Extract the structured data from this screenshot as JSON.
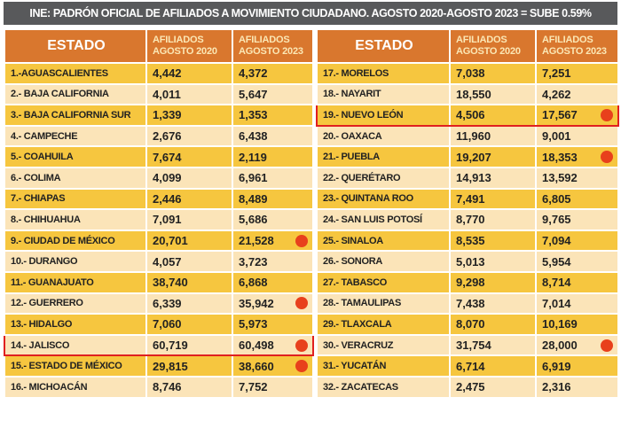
{
  "title": "INE: PADRÓN OFICIAL DE AFILIADOS A MOVIMIENTO CIUDADANO.  AGOSTO 2020-AGOSTO 2023 = SUBE 0.59%",
  "headers": {
    "estado": "ESTADO",
    "col2020": "AFILIADOS AGOSTO 2020",
    "col2023": "AFILIADOS AGOSTO 2023"
  },
  "colors": {
    "header": "#d9772e",
    "row_yellow": "#f6c63f",
    "row_cream": "#fbe4b8",
    "highlight": "#e02020",
    "dot": "#e8401c"
  },
  "left_rows": [
    {
      "estado": "1.-AGUASCALIENTES",
      "a2020": "4,442",
      "a2023": "4,372"
    },
    {
      "estado": "2.- BAJA CALIFORNIA",
      "a2020": "4,011",
      "a2023": "5,647"
    },
    {
      "estado": "3.- BAJA CALIFORNIA SUR",
      "a2020": "1,339",
      "a2023": "1,353"
    },
    {
      "estado": "4.- CAMPECHE",
      "a2020": "2,676",
      "a2023": "6,438"
    },
    {
      "estado": "5.- COAHUILA",
      "a2020": "7,674",
      "a2023": "2,119"
    },
    {
      "estado": "6.- COLIMA",
      "a2020": "4,099",
      "a2023": "6,961"
    },
    {
      "estado": "7.- CHIAPAS",
      "a2020": "2,446",
      "a2023": "8,489"
    },
    {
      "estado": "8.- CHIHUAHUA",
      "a2020": "7,091",
      "a2023": "5,686"
    },
    {
      "estado": "9.- CIUDAD DE MÉXICO",
      "a2020": "20,701",
      "a2023": "21,528",
      "dot": true
    },
    {
      "estado": "10.- DURANGO",
      "a2020": "4,057",
      "a2023": "3,723"
    },
    {
      "estado": "11.- GUANAJUATO",
      "a2020": "38,740",
      "a2023": "6,868"
    },
    {
      "estado": "12.- GUERRERO",
      "a2020": "6,339",
      "a2023": "35,942",
      "dot": true
    },
    {
      "estado": "13.- HIDALGO",
      "a2020": "7,060",
      "a2023": "5,973"
    },
    {
      "estado": "14.- JALISCO",
      "a2020": "60,719",
      "a2023": "60,498",
      "dot": true,
      "highlight": true
    },
    {
      "estado": "15.- ESTADO DE MÉXICO",
      "a2020": "29,815",
      "a2023": "38,660",
      "dot": true
    },
    {
      "estado": "16.- MICHOACÁN",
      "a2020": "8,746",
      "a2023": "7,752"
    }
  ],
  "right_rows": [
    {
      "estado": "17.- MORELOS",
      "a2020": "7,038",
      "a2023": "7,251"
    },
    {
      "estado": "18.- NAYARIT",
      "a2020": "18,550",
      "a2023": "4,262"
    },
    {
      "estado": "19.- NUEVO LEÓN",
      "a2020": "4,506",
      "a2023": "17,567",
      "dot": true,
      "highlight": true
    },
    {
      "estado": "20.- OAXACA",
      "a2020": "11,960",
      "a2023": "9,001"
    },
    {
      "estado": "21.- PUEBLA",
      "a2020": "19,207",
      "a2023": "18,353",
      "dot": true
    },
    {
      "estado": "22.- QUERÉTARO",
      "a2020": "14,913",
      "a2023": "13,592"
    },
    {
      "estado": "23.- QUINTANA ROO",
      "a2020": "7,491",
      "a2023": "6,805"
    },
    {
      "estado": "24.- SAN LUIS POTOSÍ",
      "a2020": "8,770",
      "a2023": "9,765"
    },
    {
      "estado": "25.- SINALOA",
      "a2020": "8,535",
      "a2023": "7,094"
    },
    {
      "estado": "26.- SONORA",
      "a2020": "5,013",
      "a2023": "5,954"
    },
    {
      "estado": "27.- TABASCO",
      "a2020": "9,298",
      "a2023": "8,714"
    },
    {
      "estado": "28.- TAMAULIPAS",
      "a2020": "7,438",
      "a2023": "7,014"
    },
    {
      "estado": "29.- TLAXCALA",
      "a2020": "8,070",
      "a2023": "10,169"
    },
    {
      "estado": "30.- VERACRUZ",
      "a2020": "31,754",
      "a2023": "28,000",
      "dot": true
    },
    {
      "estado": "31.- YUCATÁN",
      "a2020": "6,714",
      "a2023": "6,919"
    },
    {
      "estado": "32.- ZACATECAS",
      "a2020": "2,475",
      "a2023": "2,316"
    }
  ]
}
